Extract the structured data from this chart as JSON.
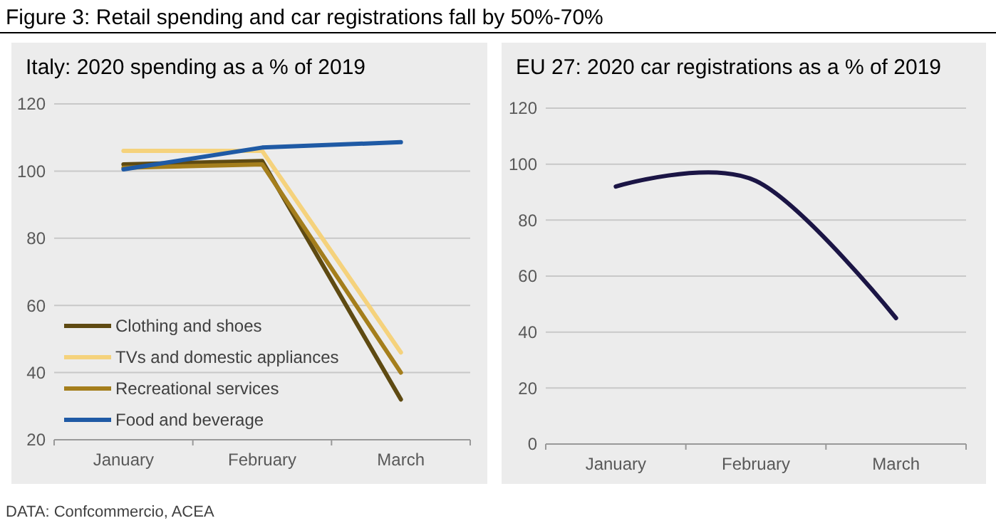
{
  "chart_data": [
    {
      "type": "line",
      "title": "Figure 3: Retail spending and car registrations fall by 50%-70%",
      "subtitle": "Italy: 2020 spending as a % of 2019",
      "categories": [
        "January",
        "February",
        "March"
      ],
      "series": [
        {
          "name": "Clothing and shoes",
          "color": "#5e4a12",
          "values": [
            102,
            103,
            32
          ]
        },
        {
          "name": "TVs and domestic appliances",
          "color": "#f5d27c",
          "values": [
            106,
            106,
            46
          ]
        },
        {
          "name": "Recreational services",
          "color": "#a47e1c",
          "values": [
            101,
            102,
            40
          ]
        },
        {
          "name": "Food and beverage",
          "color": "#1f5aa5",
          "values": [
            100.5,
            107,
            108.6
          ]
        }
      ],
      "ylim": [
        20,
        120
      ],
      "yticks": [
        20,
        40,
        60,
        80,
        100,
        120
      ],
      "grid": "y",
      "legend": "bottom left",
      "annotations": [
        "DATA: Confcommercio, ACEA"
      ]
    },
    {
      "type": "line",
      "title": "EU 27: 2020 car registrations as a % of 2019",
      "categories": [
        "January",
        "February",
        "March"
      ],
      "series": [
        {
          "color": "#1b1545",
          "values": [
            92,
            94,
            45
          ]
        }
      ],
      "ylim": [
        0,
        120
      ],
      "yticks": [
        0,
        20,
        40,
        60,
        80,
        100,
        120
      ],
      "grid": "y",
      "legend": false
    }
  ]
}
